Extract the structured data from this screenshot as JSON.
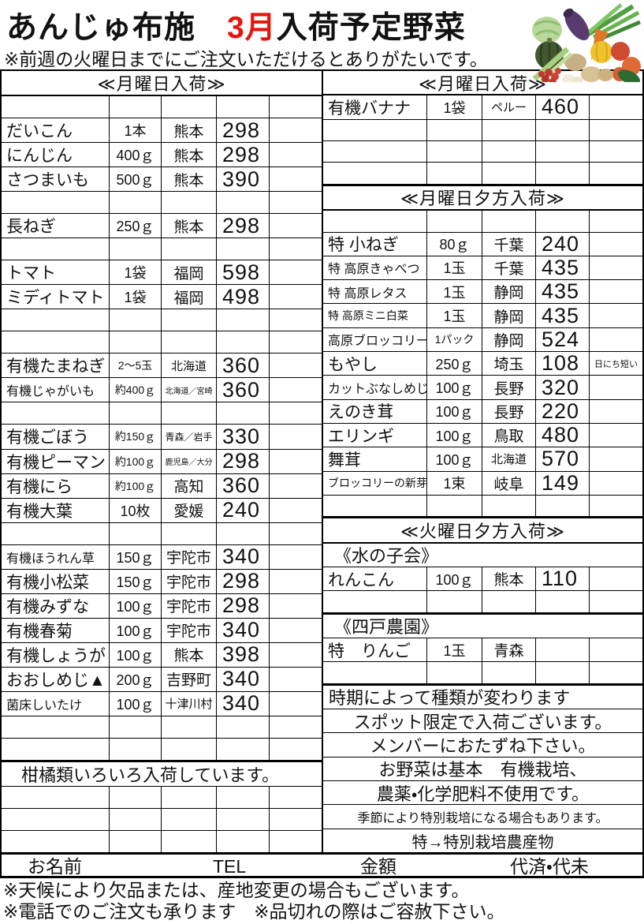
{
  "title": {
    "prefix": "あんじゅ布施　",
    "month": "3月",
    "suffix": "入荷予定野菜"
  },
  "subtitle": "※前週の火曜日までにご注文いただけるとありがたいです。",
  "colors": {
    "accent_red": "#e3170d",
    "line": "#000000"
  },
  "illustration": "vegetables-basket",
  "left_table": {
    "rows": [
      {
        "t": "h",
        "label": "≪月曜日入荷≫"
      },
      {
        "t": "e"
      },
      {
        "t": "i",
        "name": "だいこん",
        "qty": "1本",
        "origin": "熊本",
        "price": "298"
      },
      {
        "t": "i",
        "name": "にんじん",
        "qty": "400ｇ",
        "origin": "熊本",
        "price": "298"
      },
      {
        "t": "i",
        "name": "さつまいも",
        "qty": "500ｇ",
        "origin": "熊本",
        "price": "390"
      },
      {
        "t": "e"
      },
      {
        "t": "i",
        "name": "長ねぎ",
        "qty": "250ｇ",
        "origin": "熊本",
        "price": "298"
      },
      {
        "t": "e"
      },
      {
        "t": "i",
        "name": "トマト",
        "qty": "1袋",
        "origin": "福岡",
        "price": "598"
      },
      {
        "t": "i",
        "name": "ミディトマト",
        "qty": "1袋",
        "origin": "福岡",
        "price": "498"
      },
      {
        "t": "e"
      },
      {
        "t": "e"
      },
      {
        "t": "i",
        "name": "有機たまねぎ",
        "qty": "2～5玉",
        "origin": "北海道",
        "price": "360",
        "qty_cls": "sm",
        "origin_cls": "sm"
      },
      {
        "t": "i",
        "name": "有機じゃがいも",
        "qty": "約400ｇ",
        "origin": "北海道／宮崎",
        "price": "360",
        "name_cls": "sm",
        "qty_cls": "sm",
        "origin_cls": "xxs"
      },
      {
        "t": "e"
      },
      {
        "t": "i",
        "name": "有機ごぼう",
        "qty": "約150ｇ",
        "origin": "青森／岩手",
        "price": "330",
        "qty_cls": "sm",
        "origin_cls": "xs"
      },
      {
        "t": "i",
        "name": "有機ピーマン",
        "qty": "約100ｇ",
        "origin": "鹿児島／大分",
        "price": "298",
        "qty_cls": "sm",
        "origin_cls": "xxs"
      },
      {
        "t": "i",
        "name": "有機にら",
        "qty": "約100ｇ",
        "origin": "高知",
        "price": "360",
        "qty_cls": "sm"
      },
      {
        "t": "i",
        "name": "有機大葉",
        "qty": "10枚",
        "origin": "愛媛",
        "price": "240"
      },
      {
        "t": "e"
      },
      {
        "t": "i",
        "name": "有機ほうれん草",
        "qty": "150ｇ",
        "origin": "宇陀市",
        "price": "340",
        "name_cls": "sm"
      },
      {
        "t": "i",
        "name": "有機小松菜",
        "qty": "150ｇ",
        "origin": "宇陀市",
        "price": "298"
      },
      {
        "t": "i",
        "name": "有機みずな",
        "qty": "100ｇ",
        "origin": "宇陀市",
        "price": "298"
      },
      {
        "t": "i",
        "name": "有機春菊",
        "qty": "100ｇ",
        "origin": "宇陀市",
        "price": "340"
      },
      {
        "t": "i",
        "name": "有機しょうが",
        "qty": "100ｇ",
        "origin": "熊本",
        "price": "398"
      },
      {
        "t": "i",
        "name": "おおしめじ▲",
        "qty": "200ｇ",
        "origin": "吉野町",
        "price": "340"
      },
      {
        "t": "i",
        "name": "菌床しいたけ",
        "qty": "100ｇ",
        "origin": "十津川村",
        "price": "340",
        "name_cls": "sm",
        "origin_cls": "sm"
      },
      {
        "t": "e"
      },
      {
        "t": "e"
      },
      {
        "t": "n",
        "label": "柑橘類いろいろ入荷しています。",
        "align": "indent",
        "top": true
      },
      {
        "t": "e"
      },
      {
        "t": "e"
      },
      {
        "t": "e"
      }
    ]
  },
  "right_table": {
    "rows": [
      {
        "t": "h",
        "label": "≪月曜日入荷≫"
      },
      {
        "t": "i",
        "name": "有機バナナ",
        "qty": "1袋",
        "origin": "ペルー",
        "price": "460",
        "origin_cls": "sm"
      },
      {
        "t": "e"
      },
      {
        "t": "e"
      },
      {
        "t": "e"
      },
      {
        "t": "h",
        "label": "≪月曜日夕方入荷≫",
        "top": true
      },
      {
        "t": "e"
      },
      {
        "t": "i",
        "name": "特 小ねぎ",
        "qty": "80ｇ",
        "origin": "千葉",
        "price": "240"
      },
      {
        "t": "i",
        "name": "特 高原きゃべつ",
        "qty": "1玉",
        "origin": "千葉",
        "price": "435",
        "name_cls": "sm"
      },
      {
        "t": "i",
        "name": "特 高原レタス",
        "qty": "1玉",
        "origin": "静岡",
        "price": "435",
        "name_cls": "sm"
      },
      {
        "t": "i",
        "name": "特 高原ミニ白菜",
        "qty": "1玉",
        "origin": "静岡",
        "price": "435",
        "name_cls": "xs"
      },
      {
        "t": "i",
        "name": "高原ブロッコリー",
        "qty": "1パック",
        "origin": "静岡",
        "price": "524",
        "name_cls": "sm",
        "qty_cls": "sm"
      },
      {
        "t": "i",
        "name": "もやし",
        "qty": "250ｇ",
        "origin": "埼玉",
        "price": "108",
        "note": "日にち短い"
      },
      {
        "t": "i",
        "name": "カットぶなしめじ",
        "qty": "100ｇ",
        "origin": "長野",
        "price": "320",
        "name_cls": "sm"
      },
      {
        "t": "i",
        "name": "えのき茸",
        "qty": "100ｇ",
        "origin": "長野",
        "price": "220"
      },
      {
        "t": "i",
        "name": "エリンギ",
        "qty": "100ｇ",
        "origin": "鳥取",
        "price": "480"
      },
      {
        "t": "i",
        "name": "舞茸",
        "qty": "100ｇ",
        "origin": "北海道",
        "price": "570",
        "origin_cls": "sm"
      },
      {
        "t": "i",
        "name": "ブロッコリーの新芽",
        "qty": "1束",
        "origin": "岐阜",
        "price": "149",
        "name_cls": "xs"
      },
      {
        "t": "e"
      },
      {
        "t": "h",
        "label": "≪火曜日夕方入荷≫",
        "top": true
      },
      {
        "t": "g",
        "label": "《水の子会》"
      },
      {
        "t": "i",
        "name": "れんこん",
        "qty": "100ｇ",
        "origin": "熊本",
        "price": "110"
      },
      {
        "t": "e"
      },
      {
        "t": "g",
        "label": "《四戸農園》",
        "top": true
      },
      {
        "t": "i",
        "name": "特　りんご",
        "qty": "1玉",
        "origin": "青森",
        "price": ""
      },
      {
        "t": "e"
      },
      {
        "t": "n",
        "label": "時期によって種類が変わります",
        "align": "left",
        "top": true
      },
      {
        "t": "n",
        "label": "スポット限定で入荷ございます。",
        "align": "center"
      },
      {
        "t": "n",
        "label": "メンバーにおたずね下さい。",
        "align": "center"
      },
      {
        "t": "n",
        "label": "お野菜は基本　有機栽培、",
        "align": "center"
      },
      {
        "t": "n",
        "label": "農薬・化学肥料不使用です。",
        "align": "center"
      },
      {
        "t": "n",
        "label": "季節により特別栽培になる場合もあります。",
        "align": "center",
        "cls": "sm"
      },
      {
        "t": "n",
        "label": "特→特別栽培農産物",
        "align": "center",
        "cls": "md"
      }
    ]
  },
  "footer": {
    "name_label": "お名前",
    "tel_label": "TEL",
    "amount_label": "金額",
    "paid_label": "代済・代未"
  },
  "notes": [
    "※天候により欠品または、産地変更の場合もございます。",
    "※電話でのご注文も承ります　※品切れの際はご容赦下さい。"
  ]
}
